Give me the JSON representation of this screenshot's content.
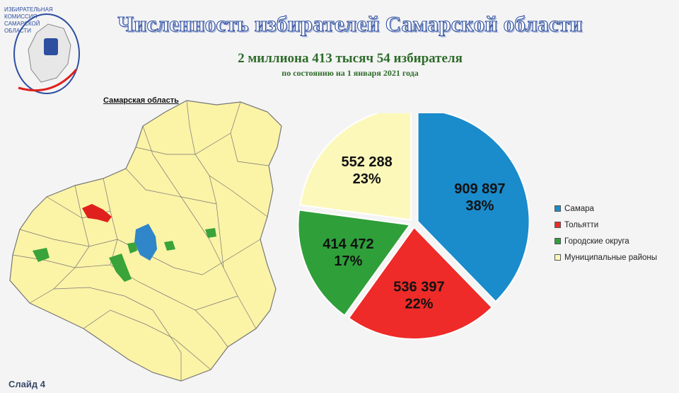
{
  "logo": {
    "text_lines": [
      "ИЗБИРАТЕЛЬНАЯ",
      "КОМИССИЯ",
      "САМАРСКОЙ",
      "ОБЛАСТИ"
    ]
  },
  "header": {
    "title": "Численность избирателей Самарской области",
    "subtitle": "2 миллиона 413 тысяч 54 избирателя",
    "date": "по состоянию на 1 января 2021 года"
  },
  "map": {
    "title": "Самарская область",
    "colors": {
      "districts": "#fbf3a6",
      "tolyatti": "#e0201c",
      "samara": "#2f86c8",
      "city_okrug": "#3aa339",
      "border": "#777777"
    }
  },
  "slide": {
    "label": "Слайд 4"
  },
  "chart_data": {
    "type": "pie",
    "title": "",
    "slices": [
      {
        "name": "Самара",
        "value": 909897,
        "value_label": "909 897",
        "percent_label": "38%",
        "color": "#1a8bcb"
      },
      {
        "name": "Тольятти",
        "value": 536397,
        "value_label": "536 397",
        "percent_label": "22%",
        "color": "#ee2b28"
      },
      {
        "name": "Городские округа",
        "value": 414472,
        "value_label": "414 472",
        "percent_label": "17%",
        "color": "#2f9f3a"
      },
      {
        "name": "Муниципальные районы",
        "value": 552288,
        "value_label": "552 288",
        "percent_label": "23%",
        "color": "#fcf8ba"
      }
    ],
    "legend_position": "right",
    "start_angle_deg": 0,
    "direction": "clockwise"
  }
}
